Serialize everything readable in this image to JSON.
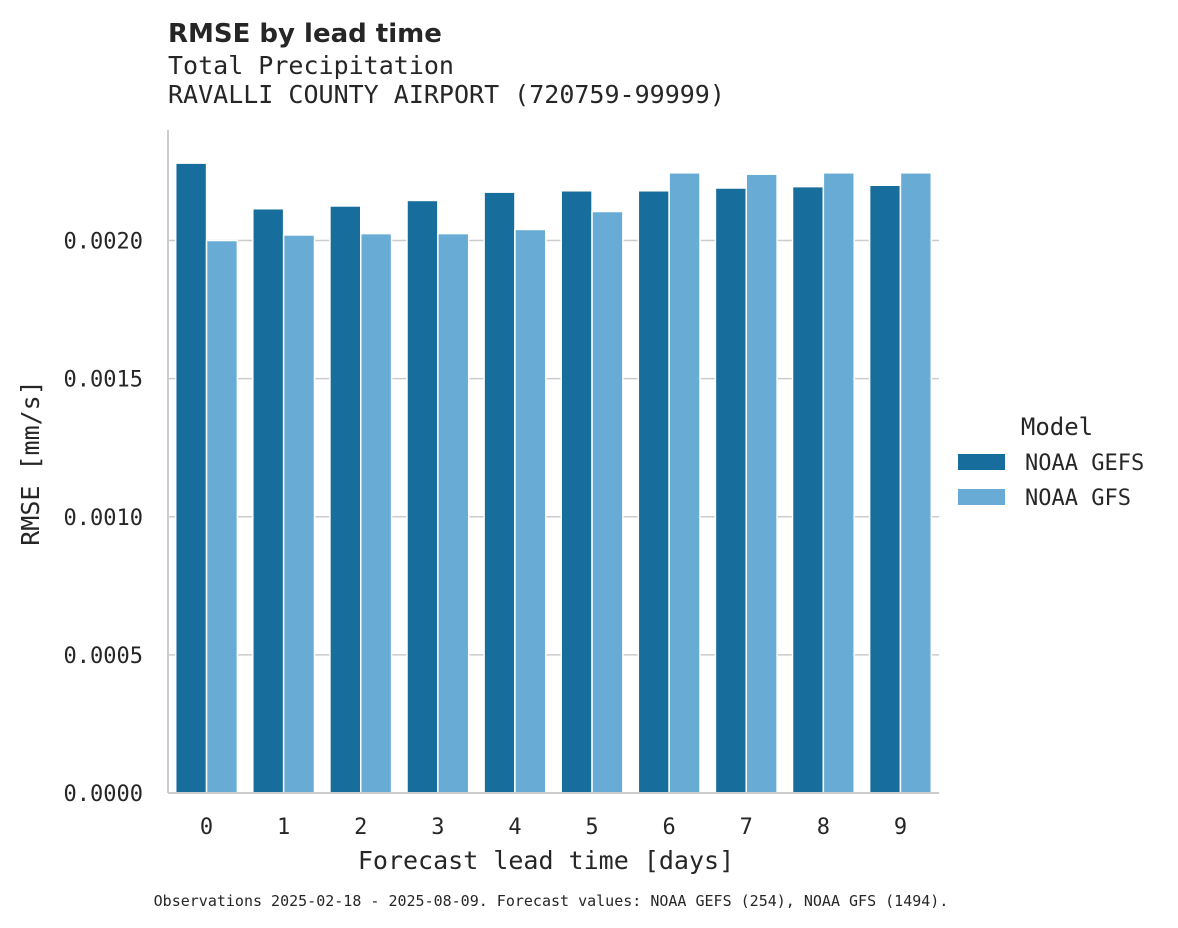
{
  "chart_data": {
    "type": "bar",
    "title": "RMSE by lead time",
    "subtitle_lines": [
      "Total Precipitation",
      "RAVALLI COUNTY AIRPORT (720759-99999)"
    ],
    "xlabel": "Forecast lead time [days]",
    "ylabel": "RMSE [mm/s]",
    "categories": [
      "0",
      "1",
      "2",
      "3",
      "4",
      "5",
      "6",
      "7",
      "8",
      "9"
    ],
    "ylim": [
      0,
      0.0024
    ],
    "yticks": [
      0,
      0.0005,
      0.001,
      0.0015,
      0.002
    ],
    "ytick_labels": [
      "0.0000",
      "0.0005",
      "0.0010",
      "0.0015",
      "0.0020"
    ],
    "grid": "horizontal",
    "legend": {
      "title": "Model",
      "placement": "right"
    },
    "series": [
      {
        "name": "NOAA GEFS",
        "color": "#176d9c",
        "values": [
          0.00228,
          0.002115,
          0.002125,
          0.002145,
          0.002175,
          0.00218,
          0.00218,
          0.00219,
          0.002195,
          0.0022
        ]
      },
      {
        "name": "NOAA GFS",
        "color": "#68acd5",
        "values": [
          0.002,
          0.00202,
          0.002025,
          0.002025,
          0.00204,
          0.002105,
          0.002245,
          0.00224,
          0.002245,
          0.002245
        ]
      }
    ],
    "footnote": "Observations 2025-02-18 - 2025-08-09. Forecast values: NOAA GEFS (254), NOAA GFS (1494)."
  }
}
